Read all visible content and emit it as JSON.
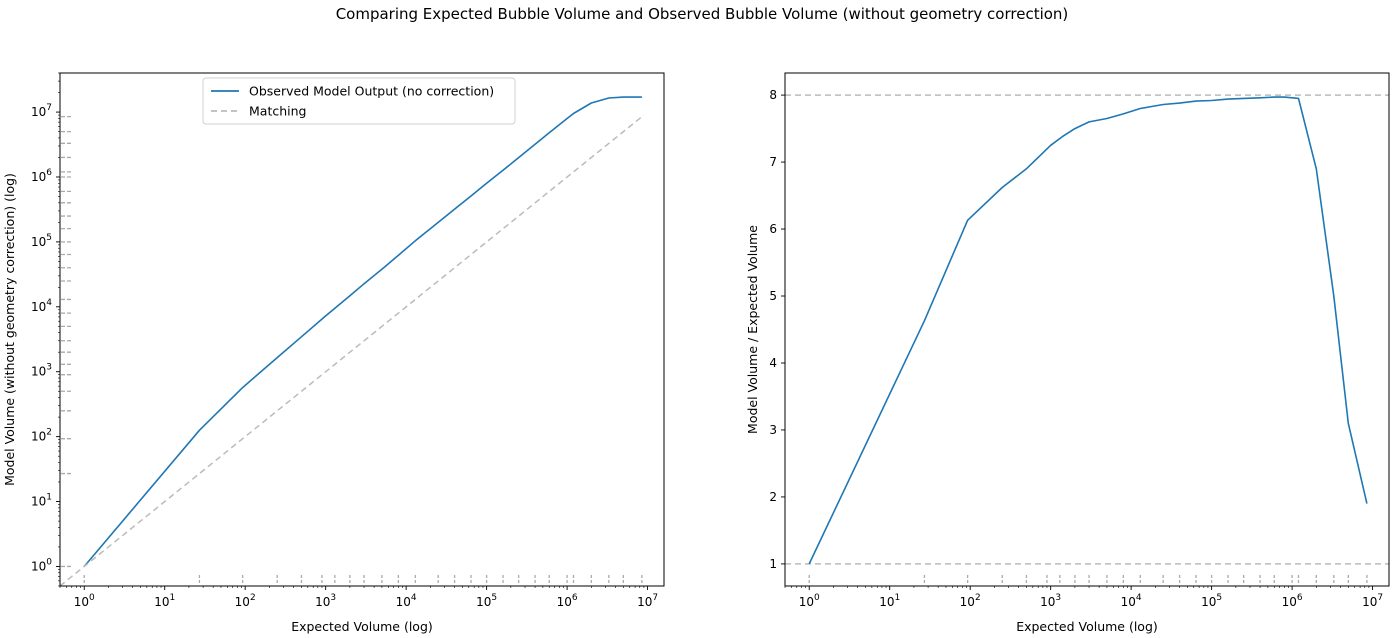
{
  "figure": {
    "suptitle": "Comparing Expected Bubble Volume and Observed Bubble Volume (without geometry correction)"
  },
  "colors": {
    "series": "#1f77b4",
    "reference": "#bbbbbb",
    "marks": "#aaaaaa"
  },
  "chart_data": [
    {
      "type": "line",
      "xscale": "log",
      "yscale": "log",
      "xlabel": "Expected Volume (log)",
      "ylabel": "Model Volume (without geometry correction) (log)",
      "xlim": [
        0.5,
        16000000
      ],
      "ylim": [
        0.5,
        40000000
      ],
      "xticks": [
        "10^0",
        "10^1",
        "10^2",
        "10^3",
        "10^4",
        "10^5",
        "10^6",
        "10^7"
      ],
      "yticks": [
        "10^0",
        "10^1",
        "10^2",
        "10^3",
        "10^4",
        "10^5",
        "10^6",
        "10^7"
      ],
      "legend": {
        "position": "top-center"
      },
      "series": [
        {
          "name": "Observed Model Output (no correction)",
          "style": "solid",
          "x": [
            1,
            27,
            93,
            250,
            500,
            1000,
            2000,
            3000,
            5000,
            8000,
            13000,
            25000,
            40000,
            64000,
            100000,
            160000,
            250000,
            400000,
            600000,
            1000000,
            1200000,
            2000000,
            3300000,
            5000000,
            8500000
          ],
          "y": [
            1,
            125,
            570,
            1650,
            3450,
            7250,
            14800,
            22700,
            38000,
            62000,
            104000,
            200000,
            320000,
            510000,
            800000,
            1270000,
            1990000,
            3190000,
            4790000,
            7950000,
            9500000,
            13800000,
            16500000,
            17000000,
            17000000
          ]
        },
        {
          "name": "Matching",
          "style": "dashed",
          "x": [
            0.5,
            9000000
          ],
          "y": [
            0.5,
            9000000
          ]
        }
      ],
      "rug_x": [
        1,
        27,
        93,
        250,
        500,
        900,
        1300,
        2000,
        3000,
        5000,
        8000,
        13000,
        25000,
        40000,
        64000,
        100000,
        160000,
        250000,
        400000,
        600000,
        1000000,
        1200000,
        2000000,
        3300000,
        5000000,
        8500000
      ],
      "rug_y": [
        1,
        27,
        93,
        250,
        500,
        900,
        1300,
        2000,
        3000,
        5000,
        8000,
        13000,
        25000,
        40000,
        64000,
        100000,
        160000,
        250000,
        400000,
        600000,
        1000000,
        1200000,
        2000000,
        3300000,
        5000000,
        8500000
      ]
    },
    {
      "type": "line",
      "xscale": "log",
      "yscale": "linear",
      "xlabel": "Expected Volume (log)",
      "ylabel": "Model Volume / Expected Volume",
      "xlim": [
        0.5,
        16000000
      ],
      "ylim": [
        0.67,
        8.33
      ],
      "xticks": [
        "10^0",
        "10^1",
        "10^2",
        "10^3",
        "10^4",
        "10^5",
        "10^6",
        "10^7"
      ],
      "yticks": [
        "1",
        "2",
        "3",
        "4",
        "5",
        "6",
        "7",
        "8"
      ],
      "hlines": [
        1,
        8
      ],
      "series": [
        {
          "style": "solid",
          "x": [
            1,
            27,
            93,
            250,
            500,
            1000,
            1400,
            2000,
            3000,
            5000,
            8000,
            13000,
            18000,
            25000,
            40000,
            64000,
            100000,
            160000,
            250000,
            400000,
            600000,
            800000,
            1200000,
            2000000,
            3300000,
            5000000,
            8500000
          ],
          "y": [
            1,
            4.63,
            6.13,
            6.62,
            6.9,
            7.25,
            7.38,
            7.5,
            7.6,
            7.65,
            7.72,
            7.8,
            7.83,
            7.86,
            7.88,
            7.91,
            7.92,
            7.94,
            7.95,
            7.96,
            7.97,
            7.97,
            7.95,
            6.9,
            5.0,
            3.1,
            1.9
          ]
        }
      ],
      "rug_x": [
        1,
        27,
        93,
        250,
        500,
        900,
        1300,
        2000,
        3000,
        5000,
        8000,
        13000,
        25000,
        40000,
        64000,
        100000,
        160000,
        250000,
        400000,
        600000,
        1000000,
        1200000,
        2000000,
        3300000,
        5000000,
        8500000
      ]
    }
  ]
}
